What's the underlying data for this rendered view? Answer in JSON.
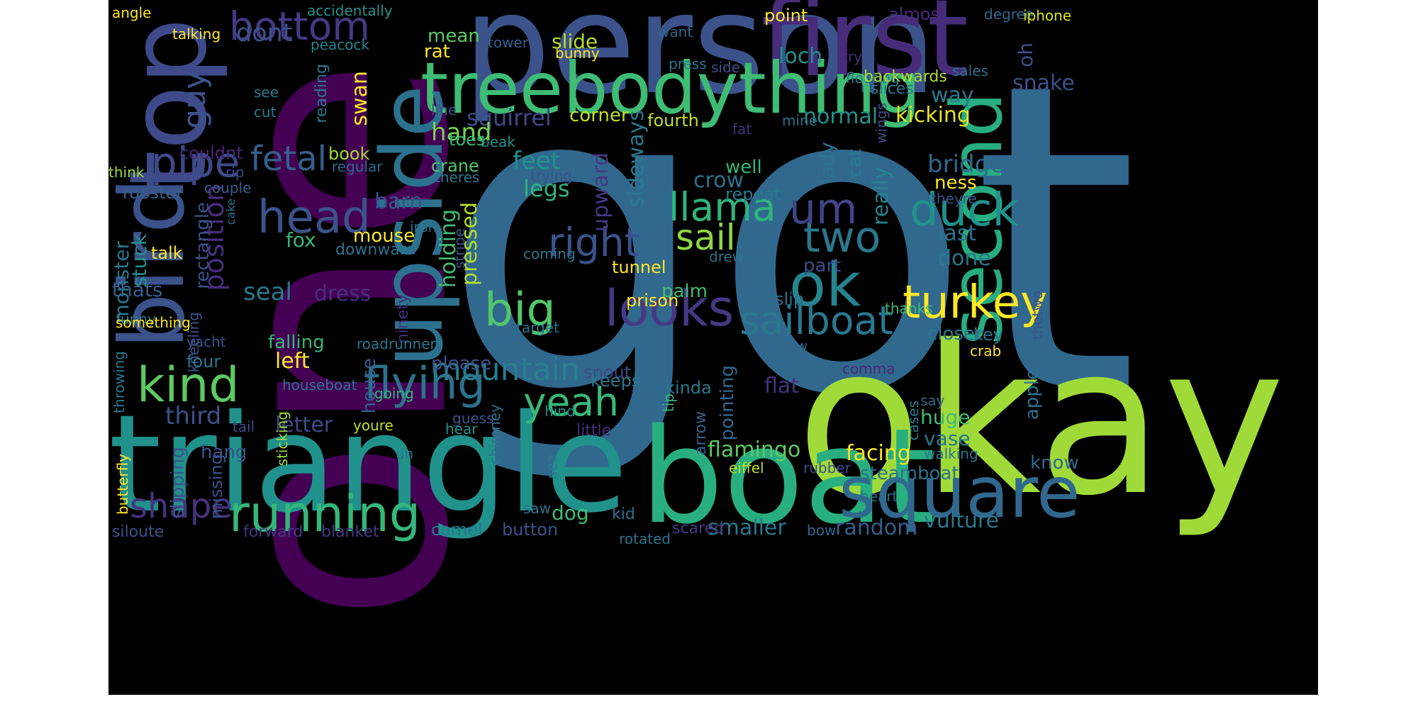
{
  "wordcloud": {
    "background": "#000000",
    "palette": "viridis",
    "words": [
      {
        "text": "got",
        "color": "#31688e"
      },
      {
        "text": "one",
        "color": "#440154"
      },
      {
        "text": "okay",
        "color": "#a0da39"
      },
      {
        "text": "person",
        "color": "#3b528b"
      },
      {
        "text": "triangle",
        "color": "#21918c"
      },
      {
        "text": "boat",
        "color": "#29af7f"
      },
      {
        "text": "first",
        "color": "#472c7a"
      },
      {
        "text": "treebodything",
        "color": "#3fbc73"
      },
      {
        "text": "upside",
        "color": "#2c728e"
      },
      {
        "text": "top",
        "color": "#3e4a89"
      },
      {
        "text": "bird",
        "color": "#3b528b"
      },
      {
        "text": "square",
        "color": "#31688e"
      },
      {
        "text": "second",
        "color": "#27ad81"
      },
      {
        "text": "ok",
        "color": "#25848e"
      },
      {
        "text": "running",
        "color": "#35b779"
      },
      {
        "text": "turkey",
        "color": "#fde725"
      },
      {
        "text": "looks",
        "color": "#443983"
      },
      {
        "text": "sailboat",
        "color": "#2a788e"
      },
      {
        "text": "head",
        "color": "#3b528b"
      },
      {
        "text": "kind",
        "color": "#5ec962"
      },
      {
        "text": "duck",
        "color": "#21918c"
      },
      {
        "text": "flying",
        "color": "#2c728e"
      },
      {
        "text": "llama",
        "color": "#2fb47c"
      },
      {
        "text": "bottom",
        "color": "#443983"
      },
      {
        "text": "big",
        "color": "#52c569"
      },
      {
        "text": "two",
        "color": "#2a788e"
      },
      {
        "text": "right",
        "color": "#3b528b"
      },
      {
        "text": "pipe",
        "color": "#3e4a89"
      },
      {
        "text": "yeah",
        "color": "#38b977"
      },
      {
        "text": "um",
        "color": "#414487"
      },
      {
        "text": "mountain",
        "color": "#277f8e"
      },
      {
        "text": "shape",
        "color": "#46327e"
      },
      {
        "text": "sail",
        "color": "#90d743"
      },
      {
        "text": "fetal",
        "color": "#355f8d"
      },
      {
        "text": "position",
        "color": "#472d7b"
      },
      {
        "text": "upward",
        "color": "#443983"
      }
    ],
    "small_words": [
      {
        "text": "angle",
        "color": "#fde725"
      },
      {
        "text": "talking",
        "color": "#fde725"
      },
      {
        "text": "accidentally",
        "color": "#21918c"
      },
      {
        "text": "peacock",
        "color": "#25848e"
      },
      {
        "text": "point",
        "color": "#fde725"
      },
      {
        "text": "almost",
        "color": "#482878"
      },
      {
        "text": "degree",
        "color": "#31688e"
      },
      {
        "text": "iphone",
        "color": "#dce319"
      },
      {
        "text": "try",
        "color": "#472d7b"
      },
      {
        "text": "floating",
        "color": "#2a788e"
      },
      {
        "text": "sales",
        "color": "#2c728e"
      },
      {
        "text": "side",
        "color": "#3b528b"
      },
      {
        "text": "press",
        "color": "#2a788e"
      },
      {
        "text": "tower",
        "color": "#355f8d"
      },
      {
        "text": "want",
        "color": "#31688e"
      },
      {
        "text": "bunny",
        "color": "#fde725"
      },
      {
        "text": "oh",
        "color": "#3e4a89"
      },
      {
        "text": "snake",
        "color": "#3b528b"
      },
      {
        "text": "dont",
        "color": "#3b528b"
      },
      {
        "text": "guy",
        "color": "#3b528b"
      },
      {
        "text": "mean",
        "color": "#5ec962"
      },
      {
        "text": "rat",
        "color": "#fde725"
      },
      {
        "text": "slide",
        "color": "#b5de2b"
      },
      {
        "text": "loch",
        "color": "#21918c"
      },
      {
        "text": "way",
        "color": "#2a788e"
      },
      {
        "text": "backwards",
        "color": "#aadc32"
      },
      {
        "text": "slices",
        "color": "#2a788e"
      },
      {
        "text": "swan",
        "color": "#fde725"
      },
      {
        "text": "squirrel",
        "color": "#3e4a89"
      },
      {
        "text": "corner",
        "color": "#c2df23"
      },
      {
        "text": "fourth",
        "color": "#c2df23"
      },
      {
        "text": "normal",
        "color": "#21918c"
      },
      {
        "text": "kicking",
        "color": "#e5e419"
      },
      {
        "text": "mine",
        "color": "#2c728e"
      },
      {
        "text": "wings",
        "color": "#3e4a89"
      },
      {
        "text": "reading",
        "color": "#2a788e"
      },
      {
        "text": "see",
        "color": "#2a788e"
      },
      {
        "text": "cut",
        "color": "#2a788e"
      },
      {
        "text": "line",
        "color": "#3b528b"
      },
      {
        "text": "hand",
        "color": "#7ad151"
      },
      {
        "text": "fat",
        "color": "#46327e"
      },
      {
        "text": "well",
        "color": "#35b779"
      },
      {
        "text": "couldnt",
        "color": "#482878"
      },
      {
        "text": "beak",
        "color": "#21918c"
      },
      {
        "text": "toes",
        "color": "#35b779"
      },
      {
        "text": "book",
        "color": "#a2da37"
      },
      {
        "text": "crane",
        "color": "#52c569"
      },
      {
        "text": "regular",
        "color": "#31688e"
      },
      {
        "text": "theres",
        "color": "#2a788e"
      },
      {
        "text": "trying",
        "color": "#3b528b"
      },
      {
        "text": "feet",
        "color": "#21918c"
      },
      {
        "text": "crow",
        "color": "#2c728e"
      },
      {
        "text": "lady",
        "color": "#2c728e"
      },
      {
        "text": "cat",
        "color": "#2a788e"
      },
      {
        "text": "bridge",
        "color": "#31688e"
      },
      {
        "text": "think",
        "color": "#a0da39"
      },
      {
        "text": "rip",
        "color": "#3e4a89"
      },
      {
        "text": "legs",
        "color": "#2fb47c"
      },
      {
        "text": "sideways",
        "color": "#2a788e"
      },
      {
        "text": "repeat",
        "color": "#2a788e"
      },
      {
        "text": "theyre",
        "color": "#3b528b"
      },
      {
        "text": "really",
        "color": "#25848e"
      },
      {
        "text": "ness",
        "color": "#fde725"
      },
      {
        "text": "rooster",
        "color": "#355f8d"
      },
      {
        "text": "couple",
        "color": "#355f8d"
      },
      {
        "text": "barn",
        "color": "#3b528b"
      },
      {
        "text": "cake",
        "color": "#2c728e"
      },
      {
        "text": "monster",
        "color": "#2a788e"
      },
      {
        "text": "iron",
        "color": "#2c728e"
      },
      {
        "text": "stripe",
        "color": "#3b528b"
      },
      {
        "text": "mouse",
        "color": "#fde725"
      },
      {
        "text": "fox",
        "color": "#35b779"
      },
      {
        "text": "holding",
        "color": "#3fbc73"
      },
      {
        "text": "pressed",
        "color": "#b5de2b"
      },
      {
        "text": "last",
        "color": "#2c728e"
      },
      {
        "text": "coming",
        "color": "#2a788e"
      },
      {
        "text": "drew",
        "color": "#2c728e"
      },
      {
        "text": "stuck",
        "color": "#21918c"
      },
      {
        "text": "talk",
        "color": "#fde725"
      },
      {
        "text": "downward",
        "color": "#2c728e"
      },
      {
        "text": "done",
        "color": "#2a788e"
      },
      {
        "text": "tunnel",
        "color": "#fde725"
      },
      {
        "text": "part",
        "color": "#3e4a89"
      },
      {
        "text": "rectangle",
        "color": "#3b528b"
      },
      {
        "text": "thats",
        "color": "#355f8d"
      },
      {
        "text": "seal",
        "color": "#2a788e"
      },
      {
        "text": "dress",
        "color": "#472d7b"
      },
      {
        "text": "palm",
        "color": "#3fbc73"
      },
      {
        "text": "prison",
        "color": "#fde725"
      },
      {
        "text": "slip",
        "color": "#2c728e"
      },
      {
        "text": "thetwo",
        "color": "#3b528b"
      },
      {
        "text": "ninety",
        "color": "#472d7b"
      },
      {
        "text": "funny",
        "color": "#2a788e"
      },
      {
        "text": "thanks",
        "color": "#3fbc73"
      },
      {
        "text": "target",
        "color": "#2a788e"
      },
      {
        "text": "something",
        "color": "#fde725"
      },
      {
        "text": "kneeling",
        "color": "#3b528b"
      },
      {
        "text": "yacht",
        "color": "#3b528b"
      },
      {
        "text": "closer",
        "color": "#2a788e"
      },
      {
        "text": "key",
        "color": "#2c728e"
      },
      {
        "text": "falling",
        "color": "#35b779"
      },
      {
        "text": "roadrunner",
        "color": "#2a788e"
      },
      {
        "text": "now",
        "color": "#31688e"
      },
      {
        "text": "crab",
        "color": "#fde725"
      },
      {
        "text": "left",
        "color": "#fde725"
      },
      {
        "text": "four",
        "color": "#2a788e"
      },
      {
        "text": "house",
        "color": "#355f8d"
      },
      {
        "text": "please",
        "color": "#3b528b"
      },
      {
        "text": "houseboat",
        "color": "#2c728e"
      },
      {
        "text": "going",
        "color": "#35b779"
      },
      {
        "text": "snout",
        "color": "#3e4a89"
      },
      {
        "text": "keeps",
        "color": "#2a788e"
      },
      {
        "text": "kinda",
        "color": "#2a788e"
      },
      {
        "text": "comma",
        "color": "#482878"
      },
      {
        "text": "throwing",
        "color": "#2a788e"
      },
      {
        "text": "flat",
        "color": "#46327e"
      },
      {
        "text": "tip",
        "color": "#35b779"
      },
      {
        "text": "pointing",
        "color": "#31688e"
      },
      {
        "text": "say",
        "color": "#31688e"
      },
      {
        "text": "apple",
        "color": "#2c728e"
      },
      {
        "text": "third",
        "color": "#3b528b"
      },
      {
        "text": "letter",
        "color": "#3e4a89"
      },
      {
        "text": "guess",
        "color": "#3b528b"
      },
      {
        "text": "hind",
        "color": "#21918c"
      },
      {
        "text": "huge",
        "color": "#3fbc73"
      },
      {
        "text": "youre",
        "color": "#c2df23"
      },
      {
        "text": "tail",
        "color": "#3e4a89"
      },
      {
        "text": "hear",
        "color": "#21918c"
      },
      {
        "text": "little",
        "color": "#472d7b"
      },
      {
        "text": "flamingo",
        "color": "#5ec962"
      },
      {
        "text": "facing",
        "color": "#fde725"
      },
      {
        "text": "vase",
        "color": "#2a788e"
      },
      {
        "text": "know",
        "color": "#31688e"
      },
      {
        "text": "hang",
        "color": "#3b528b"
      },
      {
        "text": "sticking",
        "color": "#a0da39"
      },
      {
        "text": "cases",
        "color": "#2a788e"
      },
      {
        "text": "walking",
        "color": "#2a788e"
      },
      {
        "text": "uh",
        "color": "#2c728e"
      },
      {
        "text": "chimney",
        "color": "#2c728e"
      },
      {
        "text": "sea",
        "color": "#2a788e"
      },
      {
        "text": "eiffel",
        "color": "#c2df23"
      },
      {
        "text": "rubber",
        "color": "#3b528b"
      },
      {
        "text": "steamboat",
        "color": "#2c728e"
      },
      {
        "text": "slipping",
        "color": "#3b528b"
      },
      {
        "text": "missing",
        "color": "#3b528b"
      },
      {
        "text": "arrow",
        "color": "#355f8d"
      },
      {
        "text": "heart",
        "color": "#2c728e"
      },
      {
        "text": "butterfly",
        "color": "#fde725"
      },
      {
        "text": "dog",
        "color": "#3fbc73"
      },
      {
        "text": "saw",
        "color": "#2c728e"
      },
      {
        "text": "kid",
        "color": "#2c728e"
      },
      {
        "text": "smaller",
        "color": "#2a788e"
      },
      {
        "text": "random",
        "color": "#355f8d"
      },
      {
        "text": "vulture",
        "color": "#2a788e"
      },
      {
        "text": "siloute",
        "color": "#3b528b"
      },
      {
        "text": "forward",
        "color": "#443983"
      },
      {
        "text": "blanket",
        "color": "#443983"
      },
      {
        "text": "camel",
        "color": "#2a788e"
      },
      {
        "text": "button",
        "color": "#3b528b"
      },
      {
        "text": "scared",
        "color": "#443983"
      },
      {
        "text": "bow",
        "color": "#31688e"
      },
      {
        "text": "rotated",
        "color": "#2c728e"
      }
    ]
  }
}
